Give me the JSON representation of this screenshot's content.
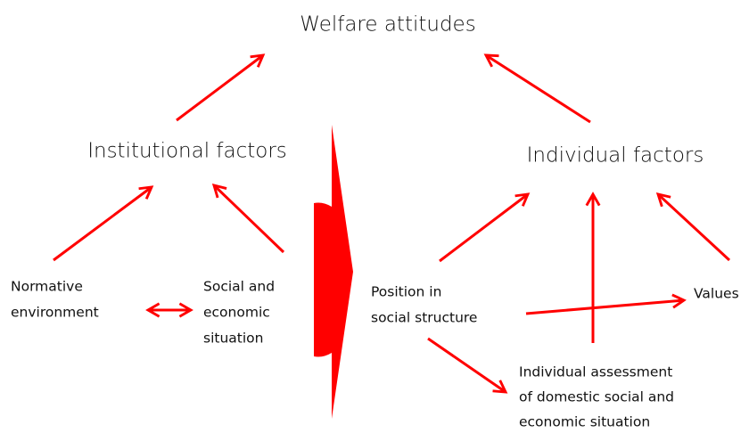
{
  "title": "Welfare attitudes",
  "nodes": [
    {
      "lines": [
        "Institutional factors"
      ]
    },
    {
      "lines": [
        "Individual factors"
      ]
    },
    {
      "lines": [
        "Normative",
        "environment"
      ]
    },
    {
      "lines": [
        "Social and",
        "economic",
        "situation"
      ]
    },
    {
      "lines": [
        "Position in",
        "social structure"
      ]
    },
    {
      "lines": [
        "Values"
      ]
    },
    {
      "lines": [
        "Individual assessment",
        "of domestic social and",
        "economic situation"
      ]
    }
  ]
}
